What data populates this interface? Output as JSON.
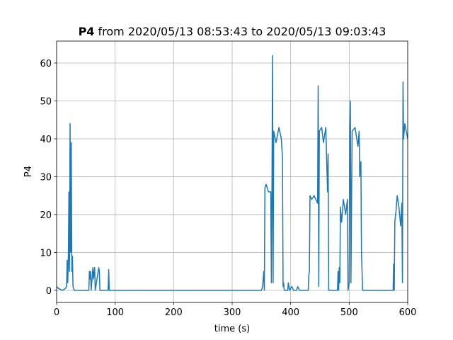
{
  "chart_data": {
    "type": "line",
    "title_bold": "P4",
    "title": " from 2020/05/13 08:53:43 to 2020/05/13 09:03:43",
    "xlabel": "time (s)",
    "ylabel": "P4",
    "color": "#1f77b4",
    "grid": true,
    "xlim": [
      0,
      600
    ],
    "ylim": [
      -3.2,
      65.8
    ],
    "xticks": [
      0,
      100,
      200,
      300,
      400,
      500,
      600
    ],
    "yticks": [
      0,
      10,
      20,
      30,
      40,
      50,
      60
    ],
    "x": [
      0,
      3,
      10,
      15,
      17,
      18,
      19,
      20,
      21,
      22,
      23,
      24,
      25,
      26,
      27,
      28,
      30,
      55,
      56,
      57,
      58,
      59,
      62,
      63,
      65,
      66,
      72,
      73,
      74,
      88,
      89,
      90,
      350,
      352,
      354,
      355,
      356,
      358,
      362,
      366,
      367,
      368,
      369,
      370,
      371,
      375,
      380,
      384,
      386,
      387,
      388,
      389,
      395,
      396,
      398,
      402,
      405,
      410,
      412,
      415,
      430,
      431,
      432,
      433,
      436,
      440,
      446,
      447,
      448,
      449,
      453,
      456,
      460,
      463,
      464,
      465,
      468,
      480,
      481,
      482,
      483,
      484,
      485,
      487,
      490,
      494,
      497,
      498,
      500,
      501,
      502,
      503,
      505,
      510,
      515,
      517,
      518,
      520,
      521,
      522,
      523,
      525,
      575,
      576,
      577,
      578,
      580,
      582,
      585,
      588,
      590,
      591,
      592,
      593,
      595,
      600
    ],
    "values": [
      1,
      0.5,
      0,
      0.5,
      1,
      8,
      2,
      8,
      26,
      5,
      44,
      10,
      39,
      5,
      9,
      1,
      0,
      0,
      5,
      3,
      5,
      0,
      6,
      3,
      6,
      0,
      6,
      5,
      0,
      0,
      5.5,
      0,
      0,
      1,
      5,
      0,
      27,
      28,
      26,
      26,
      2,
      26,
      62,
      2,
      42,
      39,
      43,
      40,
      35,
      1,
      2,
      0,
      0,
      2,
      0,
      1,
      0,
      0,
      1,
      0,
      0,
      4,
      5,
      25,
      24,
      25,
      23,
      54,
      1,
      42,
      43,
      39,
      43,
      26,
      36,
      0,
      0,
      0,
      5,
      0,
      6,
      2,
      22,
      18,
      24,
      20,
      24,
      0,
      2,
      42,
      50,
      2,
      42,
      43,
      38,
      42,
      30,
      34,
      10,
      5,
      0,
      0,
      0,
      7,
      0,
      18,
      21,
      25,
      22,
      17,
      23,
      2,
      55,
      40,
      44,
      40
    ]
  }
}
